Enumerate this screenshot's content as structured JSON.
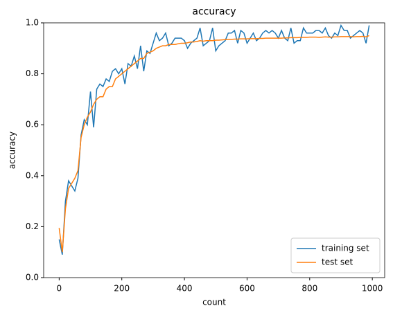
{
  "chart_data": {
    "type": "line",
    "title": "accuracy",
    "x_label": "count",
    "y_label": "accuracy",
    "x": [
      0,
      10,
      20,
      30,
      40,
      50,
      60,
      70,
      80,
      90,
      100,
      110,
      120,
      130,
      140,
      150,
      160,
      170,
      180,
      190,
      200,
      210,
      220,
      230,
      240,
      250,
      260,
      270,
      280,
      290,
      300,
      310,
      320,
      330,
      340,
      350,
      360,
      370,
      380,
      390,
      400,
      410,
      420,
      430,
      440,
      450,
      460,
      470,
      480,
      490,
      500,
      510,
      520,
      530,
      540,
      550,
      560,
      570,
      580,
      590,
      600,
      610,
      620,
      630,
      640,
      650,
      660,
      670,
      680,
      690,
      700,
      710,
      720,
      730,
      740,
      750,
      760,
      770,
      780,
      790,
      800,
      810,
      820,
      830,
      840,
      850,
      860,
      870,
      880,
      890,
      900,
      910,
      920,
      930,
      940,
      950,
      960,
      970,
      980,
      990
    ],
    "series": [
      {
        "name": "training set",
        "color": "#1f77b4",
        "values": [
          0.15,
          0.09,
          0.3,
          0.38,
          0.36,
          0.34,
          0.39,
          0.56,
          0.62,
          0.6,
          0.73,
          0.59,
          0.74,
          0.76,
          0.75,
          0.78,
          0.77,
          0.81,
          0.82,
          0.8,
          0.82,
          0.76,
          0.84,
          0.83,
          0.87,
          0.82,
          0.91,
          0.81,
          0.89,
          0.88,
          0.92,
          0.96,
          0.93,
          0.94,
          0.96,
          0.91,
          0.92,
          0.94,
          0.94,
          0.94,
          0.93,
          0.9,
          0.92,
          0.93,
          0.94,
          0.98,
          0.91,
          0.92,
          0.93,
          0.98,
          0.89,
          0.91,
          0.92,
          0.93,
          0.96,
          0.96,
          0.97,
          0.92,
          0.97,
          0.96,
          0.92,
          0.94,
          0.96,
          0.93,
          0.94,
          0.96,
          0.97,
          0.96,
          0.97,
          0.96,
          0.94,
          0.97,
          0.94,
          0.93,
          0.98,
          0.92,
          0.93,
          0.93,
          0.98,
          0.96,
          0.96,
          0.96,
          0.97,
          0.97,
          0.96,
          0.98,
          0.95,
          0.94,
          0.96,
          0.95,
          0.99,
          0.97,
          0.97,
          0.94,
          0.95,
          0.96,
          0.97,
          0.96,
          0.92,
          0.99
        ]
      },
      {
        "name": "test set",
        "color": "#ff7f0e",
        "values": [
          0.195,
          0.1,
          0.27,
          0.35,
          0.37,
          0.39,
          0.42,
          0.55,
          0.6,
          0.63,
          0.65,
          0.68,
          0.7,
          0.71,
          0.71,
          0.74,
          0.75,
          0.75,
          0.78,
          0.79,
          0.8,
          0.81,
          0.82,
          0.83,
          0.84,
          0.85,
          0.86,
          0.86,
          0.88,
          0.885,
          0.89,
          0.9,
          0.905,
          0.91,
          0.91,
          0.915,
          0.915,
          0.915,
          0.918,
          0.92,
          0.92,
          0.922,
          0.925,
          0.925,
          0.927,
          0.93,
          0.928,
          0.93,
          0.93,
          0.93,
          0.932,
          0.932,
          0.933,
          0.934,
          0.935,
          0.935,
          0.936,
          0.936,
          0.937,
          0.937,
          0.937,
          0.938,
          0.938,
          0.938,
          0.939,
          0.939,
          0.94,
          0.94,
          0.94,
          0.94,
          0.94,
          0.94,
          0.941,
          0.941,
          0.942,
          0.942,
          0.942,
          0.943,
          0.943,
          0.943,
          0.944,
          0.944,
          0.944,
          0.943,
          0.944,
          0.945,
          0.944,
          0.944,
          0.945,
          0.945,
          0.946,
          0.946,
          0.946,
          0.946,
          0.945,
          0.946,
          0.946,
          0.947,
          0.945,
          0.95
        ]
      }
    ],
    "xlim": [
      -49.5,
      1039.5
    ],
    "ylim": [
      0,
      1
    ],
    "xticks": [
      0,
      200,
      400,
      600,
      800,
      1000
    ],
    "yticks": [
      {
        "value": 0,
        "label": "0.0"
      },
      0.2,
      0.4,
      0.6,
      0.8,
      {
        "value": 1,
        "label": "1.0"
      }
    ],
    "legend": "lower right"
  }
}
